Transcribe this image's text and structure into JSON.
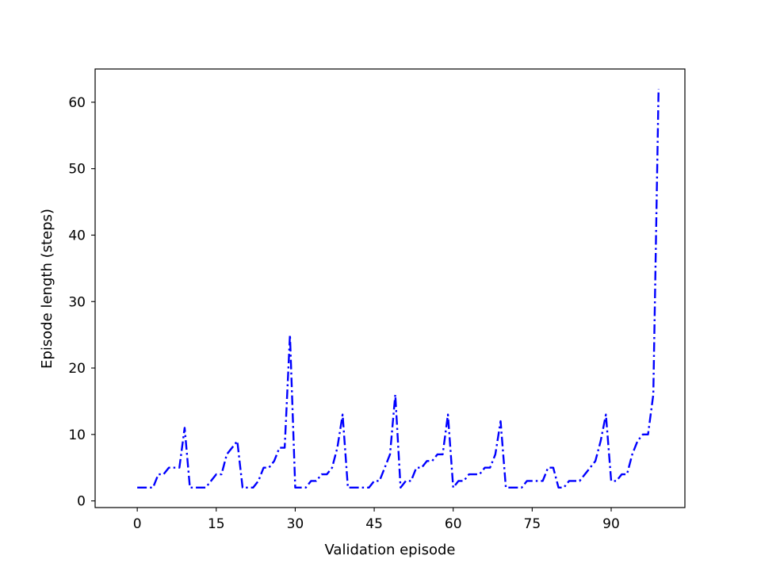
{
  "chart_data": {
    "type": "line",
    "xlabel": "Validation episode",
    "ylabel": "Episode length (steps)",
    "xlim": [
      -8,
      104
    ],
    "ylim": [
      -1,
      65
    ],
    "xticks": [
      0,
      15,
      30,
      45,
      60,
      75,
      90
    ],
    "yticks": [
      0,
      10,
      20,
      30,
      40,
      50,
      60
    ],
    "grid": false,
    "legend": "none",
    "series": [
      {
        "color": "#0000ff",
        "line_style": "dash-dot",
        "x": [
          0,
          1,
          2,
          3,
          4,
          5,
          6,
          7,
          8,
          9,
          10,
          11,
          12,
          13,
          14,
          15,
          16,
          17,
          18,
          19,
          20,
          21,
          22,
          23,
          24,
          25,
          26,
          27,
          28,
          29,
          30,
          31,
          32,
          33,
          34,
          35,
          36,
          37,
          38,
          39,
          40,
          41,
          42,
          43,
          44,
          45,
          46,
          47,
          48,
          49,
          50,
          51,
          52,
          53,
          54,
          55,
          56,
          57,
          58,
          59,
          60,
          61,
          62,
          63,
          64,
          65,
          66,
          67,
          68,
          69,
          70,
          71,
          72,
          73,
          74,
          75,
          76,
          77,
          78,
          79,
          80,
          81,
          82,
          83,
          84,
          85,
          86,
          87,
          88,
          89,
          90,
          91,
          92,
          93,
          94,
          95,
          96,
          97,
          98,
          99
        ],
        "y": [
          2,
          2,
          2,
          2,
          4,
          4,
          5,
          5,
          5,
          11,
          2,
          2,
          2,
          2,
          3,
          4,
          4,
          7,
          8,
          9,
          2,
          2,
          2,
          3,
          5,
          5,
          6,
          8,
          8,
          25,
          2,
          2,
          2,
          3,
          3,
          4,
          4,
          5,
          8,
          13,
          2,
          2,
          2,
          2,
          2,
          3,
          3,
          5,
          7,
          16,
          2,
          3,
          3,
          5,
          5,
          6,
          6,
          7,
          7,
          13,
          2,
          3,
          3,
          4,
          4,
          4,
          5,
          5,
          7,
          12,
          2,
          2,
          2,
          2,
          3,
          3,
          3,
          3,
          5,
          5,
          2,
          2,
          3,
          3,
          3,
          4,
          5,
          6,
          9,
          13,
          3,
          3,
          4,
          4,
          7,
          9,
          10,
          10,
          16,
          62
        ]
      }
    ]
  }
}
